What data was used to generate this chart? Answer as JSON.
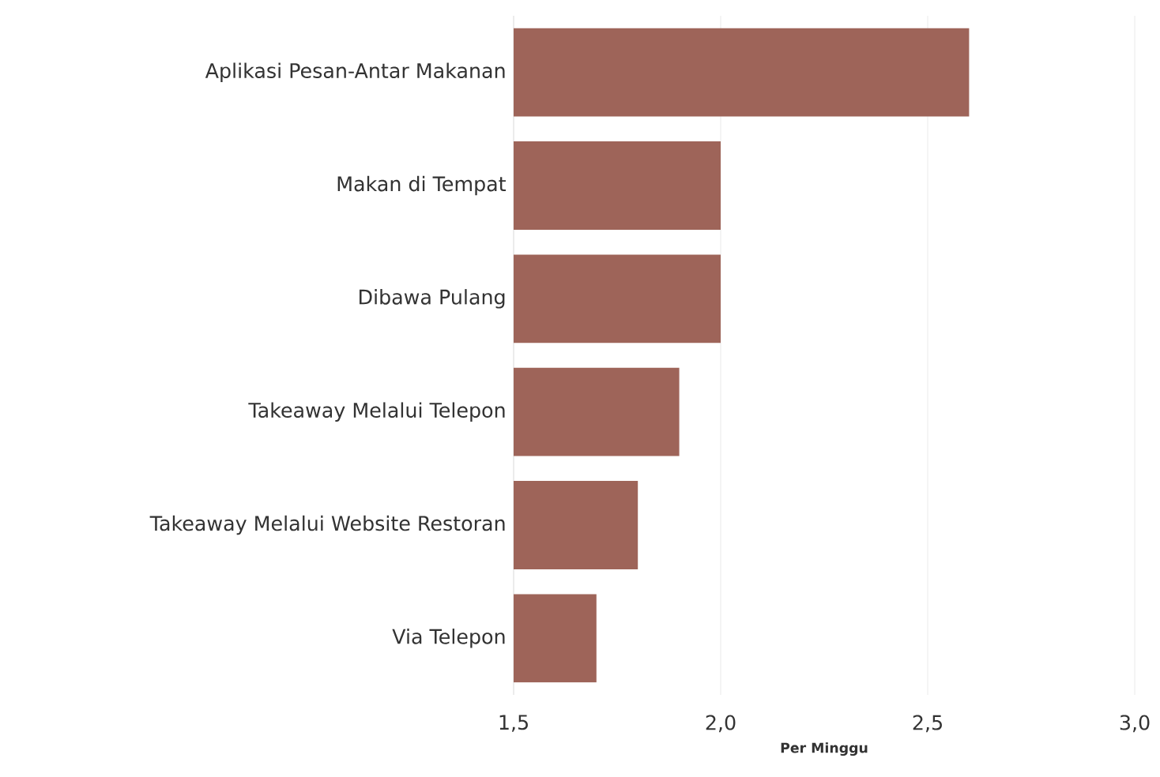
{
  "chart_data": {
    "type": "bar",
    "orientation": "horizontal",
    "categories": [
      "Aplikasi Pesan-Antar Makanan",
      "Makan di Tempat",
      "Dibawa Pulang",
      "Takeaway Melalui Telepon",
      "Takeaway Melalui Website Restoran",
      "Via Telepon"
    ],
    "values": [
      2.6,
      2.0,
      2.0,
      1.9,
      1.8,
      1.7
    ],
    "color": "#9e6459",
    "xlabel": "Per Minggu",
    "xlim": [
      1.5,
      3.0
    ],
    "xticks": [
      {
        "value": 1.5,
        "label": "1,5"
      },
      {
        "value": 2.0,
        "label": "2,0"
      },
      {
        "value": 2.5,
        "label": "2,5"
      },
      {
        "value": 3.0,
        "label": "3,0"
      }
    ],
    "grid": "x"
  }
}
